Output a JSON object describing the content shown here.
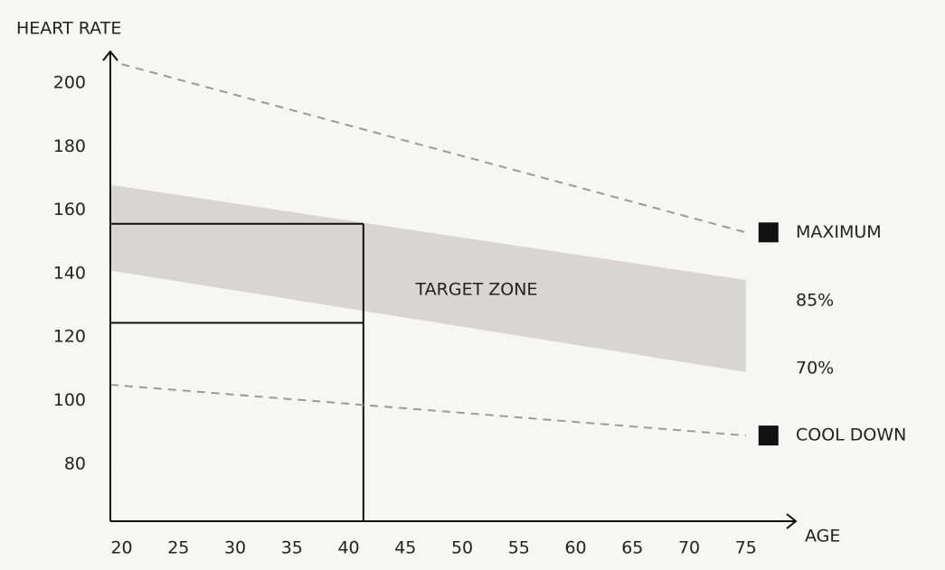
{
  "chart_data": {
    "type": "line",
    "y_label": "HEART RATE",
    "x_label": "AGE",
    "xlim": [
      19,
      79.4
    ],
    "ylim": [
      62,
      210
    ],
    "xticks": [
      20,
      25,
      30,
      35,
      40,
      45,
      50,
      55,
      60,
      65,
      70,
      75
    ],
    "yticks": [
      80,
      100,
      120,
      140,
      160,
      180,
      200
    ],
    "series": [
      {
        "name": "MAXIMUM",
        "color": "#9a9a9a",
        "x": [
          20,
          75
        ],
        "values": [
          206,
          153
        ]
      },
      {
        "name": "COOL DOWN",
        "color": "#9a9a9a",
        "x": [
          19,
          75
        ],
        "values": [
          105,
          89
        ]
      }
    ],
    "band": {
      "name": "TARGET ZONE",
      "color": "#d8d6d5",
      "x": [
        19,
        75
      ],
      "upper": [
        168,
        138
      ],
      "lower": [
        141,
        109
      ],
      "upper_label": "85%",
      "lower_label": "70%"
    },
    "example": {
      "age": 41.3,
      "upper": 155.7,
      "lower": 124.5
    },
    "marker_color": "#111111"
  }
}
